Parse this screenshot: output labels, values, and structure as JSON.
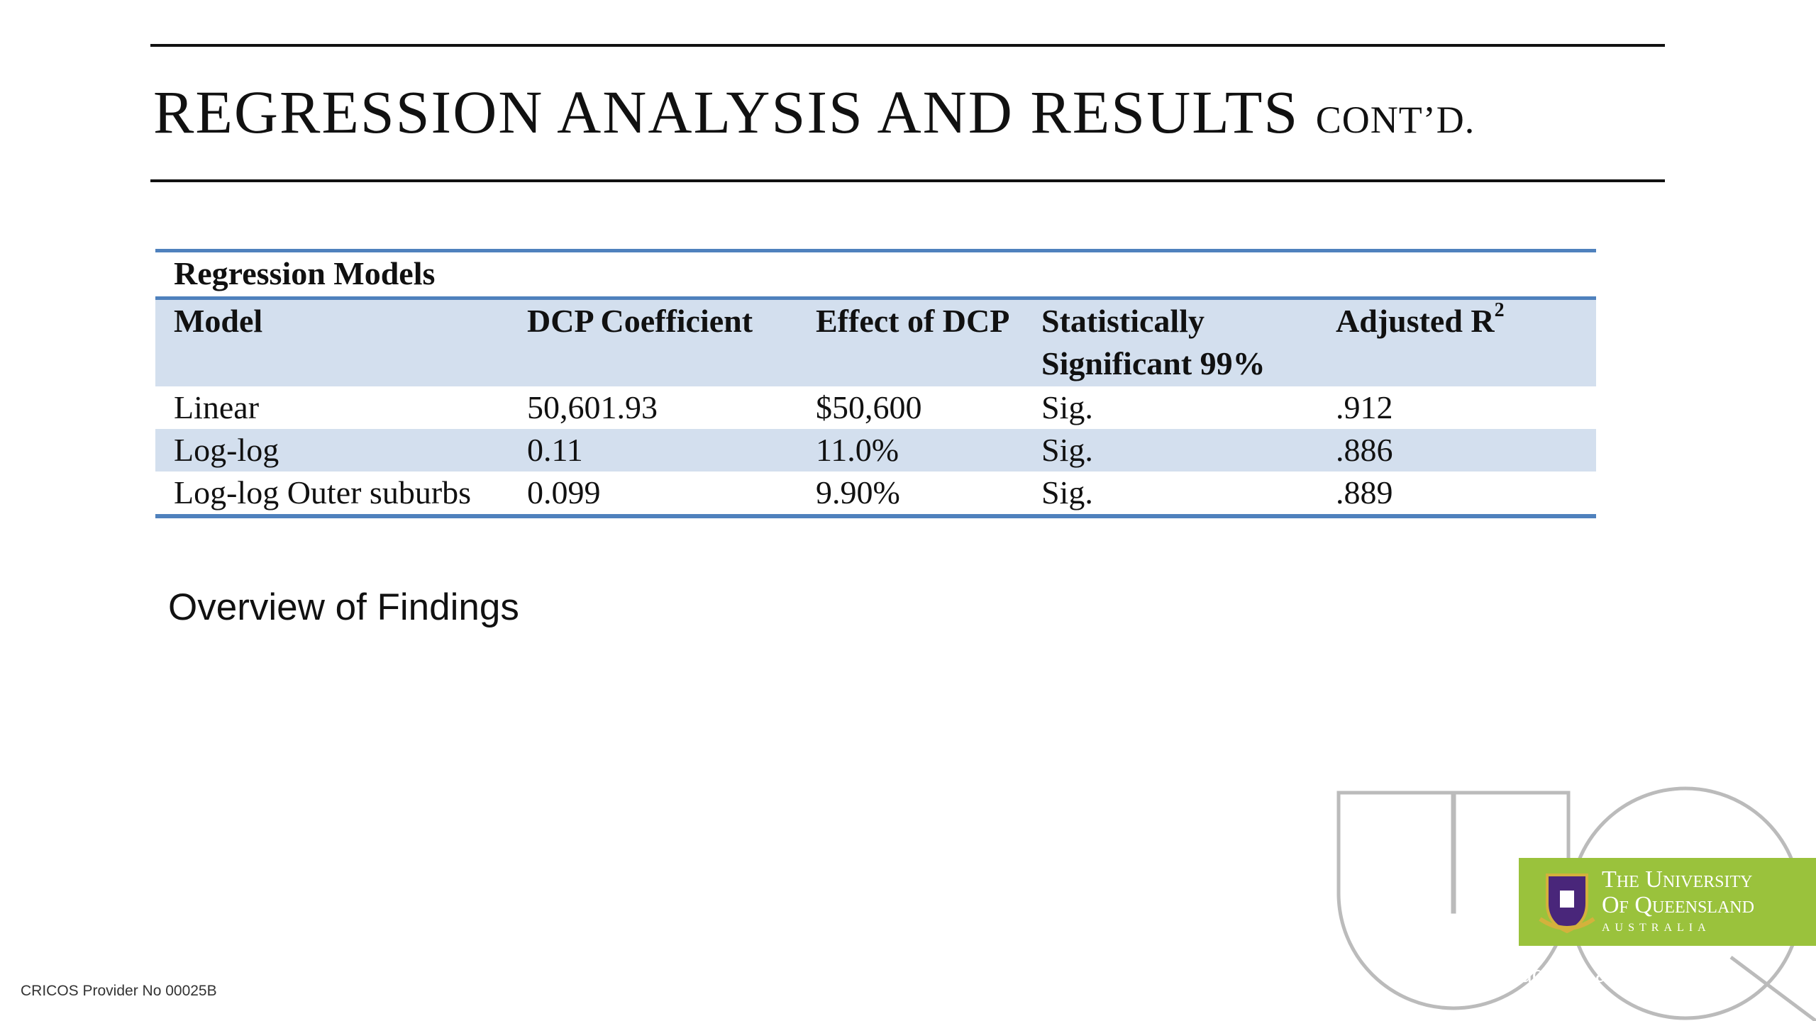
{
  "slide": {
    "title": "REGRESSION ANALYSIS AND RESULTS",
    "title_suffix": "CONT’D.",
    "table": {
      "caption": "Regression Models",
      "headers": [
        "Model",
        "DCP Coefficient",
        "Effect of DCP",
        "Statistically Significant 99%",
        "Adjusted R"
      ],
      "header_superscript": "2",
      "rows": [
        [
          "Linear",
          "50,601.93",
          "$50,600",
          "Sig.",
          ".912"
        ],
        [
          "Log-log",
          "0.11",
          "11.0%",
          "Sig.",
          ".886"
        ],
        [
          "Log-log Outer suburbs",
          "0.099",
          "9.90%",
          "Sig.",
          ".889"
        ]
      ]
    },
    "subheading": "Overview of Findings",
    "footer": "CRICOS Provider No 00025B",
    "logo": {
      "line1": "The University",
      "line2": "Of Queensland",
      "line3": "AUSTRALIA",
      "url": "uq.edu.au"
    }
  }
}
